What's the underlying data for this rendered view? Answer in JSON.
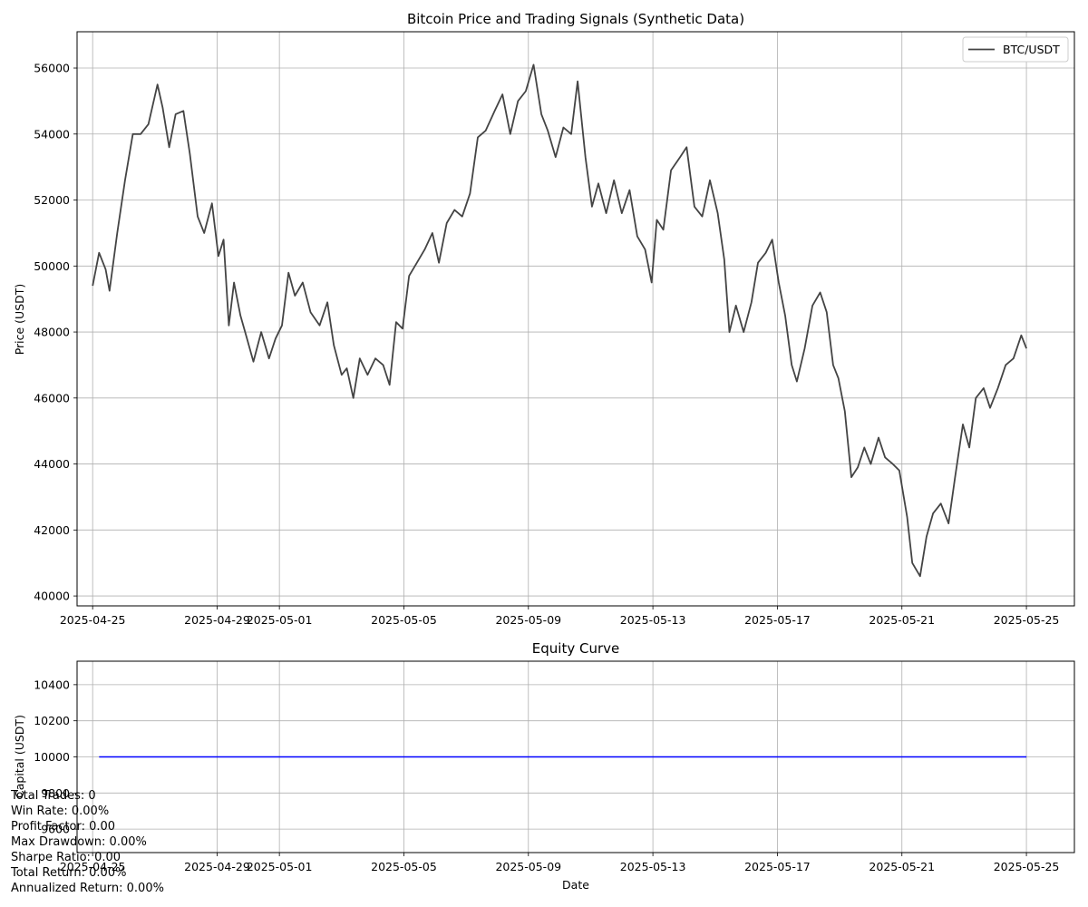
{
  "chart_data": [
    {
      "type": "line",
      "title": "Bitcoin Price and Trading Signals (Synthetic Data)",
      "xlabel": "",
      "ylabel": "Price (USDT)",
      "xlim": [
        "2025-04-24T12:00",
        "2025-05-26T13:00"
      ],
      "ylim": [
        39700,
        57100
      ],
      "xticks": [
        "2025-04-25",
        "2025-04-29",
        "2025-05-01",
        "2025-05-05",
        "2025-05-09",
        "2025-05-13",
        "2025-05-17",
        "2025-05-21",
        "2025-05-25"
      ],
      "yticks": [
        40000,
        42000,
        44000,
        46000,
        48000,
        50000,
        52000,
        54000,
        56000
      ],
      "grid": true,
      "legend": "top-right",
      "series": [
        {
          "name": "BTC/USDT",
          "color": "#444444",
          "points": [
            [
              "2025-04-25T00:00",
              49400
            ],
            [
              "2025-04-25T05:00",
              50400
            ],
            [
              "2025-04-25T10:00",
              49900
            ],
            [
              "2025-04-25T13:00",
              49250
            ],
            [
              "2025-04-25T19:00",
              51000
            ],
            [
              "2025-04-26T01:00",
              52600
            ],
            [
              "2025-04-26T07:00",
              54000
            ],
            [
              "2025-04-26T13:00",
              54000
            ],
            [
              "2025-04-26T19:00",
              54300
            ],
            [
              "2025-04-27T02:00",
              55500
            ],
            [
              "2025-04-27T06:00",
              54800
            ],
            [
              "2025-04-27T11:00",
              53600
            ],
            [
              "2025-04-27T16:00",
              54600
            ],
            [
              "2025-04-27T22:00",
              54700
            ],
            [
              "2025-04-28T03:00",
              53400
            ],
            [
              "2025-04-28T09:00",
              51500
            ],
            [
              "2025-04-28T14:00",
              51000
            ],
            [
              "2025-04-28T20:00",
              51900
            ],
            [
              "2025-04-29T01:00",
              50300
            ],
            [
              "2025-04-29T05:00",
              50800
            ],
            [
              "2025-04-29T09:00",
              48200
            ],
            [
              "2025-04-29T13:00",
              49500
            ],
            [
              "2025-04-29T18:00",
              48500
            ],
            [
              "2025-04-29T23:00",
              47800
            ],
            [
              "2025-04-30T04:00",
              47100
            ],
            [
              "2025-04-30T10:00",
              48000
            ],
            [
              "2025-04-30T16:00",
              47200
            ],
            [
              "2025-04-30T21:00",
              47800
            ],
            [
              "2025-05-01T02:00",
              48200
            ],
            [
              "2025-05-01T07:00",
              49800
            ],
            [
              "2025-05-01T12:00",
              49100
            ],
            [
              "2025-05-01T18:00",
              49500
            ],
            [
              "2025-05-02T00:00",
              48600
            ],
            [
              "2025-05-02T07:00",
              48200
            ],
            [
              "2025-05-02T13:00",
              48900
            ],
            [
              "2025-05-02T18:00",
              47600
            ],
            [
              "2025-05-03T00:00",
              46700
            ],
            [
              "2025-05-03T04:00",
              46900
            ],
            [
              "2025-05-03T09:00",
              46000
            ],
            [
              "2025-05-03T14:00",
              47200
            ],
            [
              "2025-05-03T20:00",
              46700
            ],
            [
              "2025-05-04T02:00",
              47200
            ],
            [
              "2025-05-04T08:00",
              47000
            ],
            [
              "2025-05-04T13:00",
              46400
            ],
            [
              "2025-05-04T18:00",
              48300
            ],
            [
              "2025-05-04T23:00",
              48100
            ],
            [
              "2025-05-05T04:00",
              49700
            ],
            [
              "2025-05-05T10:00",
              50100
            ],
            [
              "2025-05-05T16:00",
              50500
            ],
            [
              "2025-05-05T22:00",
              51000
            ],
            [
              "2025-05-06T03:00",
              50100
            ],
            [
              "2025-05-06T09:00",
              51300
            ],
            [
              "2025-05-06T15:00",
              51700
            ],
            [
              "2025-05-06T21:00",
              51500
            ],
            [
              "2025-05-07T03:00",
              52200
            ],
            [
              "2025-05-07T09:00",
              53900
            ],
            [
              "2025-05-07T15:00",
              54100
            ],
            [
              "2025-05-07T22:00",
              54700
            ],
            [
              "2025-05-08T04:00",
              55200
            ],
            [
              "2025-05-08T10:00",
              54000
            ],
            [
              "2025-05-08T16:00",
              55000
            ],
            [
              "2025-05-08T22:00",
              55300
            ],
            [
              "2025-05-09T04:00",
              56100
            ],
            [
              "2025-05-09T10:00",
              54600
            ],
            [
              "2025-05-09T15:00",
              54100
            ],
            [
              "2025-05-09T21:00",
              53300
            ],
            [
              "2025-05-10T03:00",
              54200
            ],
            [
              "2025-05-10T09:00",
              54000
            ],
            [
              "2025-05-10T14:00",
              55600
            ],
            [
              "2025-05-10T20:00",
              53300
            ],
            [
              "2025-05-11T01:00",
              51800
            ],
            [
              "2025-05-11T06:00",
              52500
            ],
            [
              "2025-05-11T12:00",
              51600
            ],
            [
              "2025-05-11T18:00",
              52600
            ],
            [
              "2025-05-12T00:00",
              51600
            ],
            [
              "2025-05-12T06:00",
              52300
            ],
            [
              "2025-05-12T12:00",
              50900
            ],
            [
              "2025-05-12T18:00",
              50500
            ],
            [
              "2025-05-12T23:00",
              49500
            ],
            [
              "2025-05-13T03:00",
              51400
            ],
            [
              "2025-05-13T08:00",
              51100
            ],
            [
              "2025-05-13T14:00",
              52900
            ],
            [
              "2025-05-13T21:00",
              53300
            ],
            [
              "2025-05-14T02:00",
              53600
            ],
            [
              "2025-05-14T08:00",
              51800
            ],
            [
              "2025-05-14T14:00",
              51500
            ],
            [
              "2025-05-14T20:00",
              52600
            ],
            [
              "2025-05-15T02:00",
              51600
            ],
            [
              "2025-05-15T07:00",
              50200
            ],
            [
              "2025-05-15T11:00",
              48000
            ],
            [
              "2025-05-15T16:00",
              48800
            ],
            [
              "2025-05-15T22:00",
              48000
            ],
            [
              "2025-05-16T04:00",
              48900
            ],
            [
              "2025-05-16T09:00",
              50100
            ],
            [
              "2025-05-16T15:00",
              50400
            ],
            [
              "2025-05-16T20:00",
              50800
            ],
            [
              "2025-05-17T01:00",
              49500
            ],
            [
              "2025-05-17T06:00",
              48500
            ],
            [
              "2025-05-17T11:00",
              47000
            ],
            [
              "2025-05-17T15:00",
              46500
            ],
            [
              "2025-05-17T21:00",
              47500
            ],
            [
              "2025-05-18T03:00",
              48800
            ],
            [
              "2025-05-18T09:00",
              49200
            ],
            [
              "2025-05-18T14:00",
              48600
            ],
            [
              "2025-05-18T19:00",
              47000
            ],
            [
              "2025-05-18T23:00",
              46600
            ],
            [
              "2025-05-19T04:00",
              45600
            ],
            [
              "2025-05-19T09:00",
              43600
            ],
            [
              "2025-05-19T14:00",
              43900
            ],
            [
              "2025-05-19T19:00",
              44500
            ],
            [
              "2025-05-20T00:00",
              44000
            ],
            [
              "2025-05-20T06:00",
              44800
            ],
            [
              "2025-05-20T11:00",
              44200
            ],
            [
              "2025-05-20T17:00",
              44000
            ],
            [
              "2025-05-20T22:00",
              43800
            ],
            [
              "2025-05-21T04:00",
              42400
            ],
            [
              "2025-05-21T08:00",
              41000
            ],
            [
              "2025-05-21T14:00",
              40600
            ],
            [
              "2025-05-21T19:00",
              41800
            ],
            [
              "2025-05-22T00:00",
              42500
            ],
            [
              "2025-05-22T06:00",
              42800
            ],
            [
              "2025-05-22T12:00",
              42200
            ],
            [
              "2025-05-22T17:00",
              43600
            ],
            [
              "2025-05-22T23:00",
              45200
            ],
            [
              "2025-05-23T04:00",
              44500
            ],
            [
              "2025-05-23T09:00",
              46000
            ],
            [
              "2025-05-23T15:00",
              46300
            ],
            [
              "2025-05-23T20:00",
              45700
            ],
            [
              "2025-05-24T02:00",
              46300
            ],
            [
              "2025-05-24T08:00",
              47000
            ],
            [
              "2025-05-24T14:00",
              47200
            ],
            [
              "2025-05-24T20:00",
              47900
            ],
            [
              "2025-05-25T00:00",
              47500
            ]
          ]
        }
      ]
    },
    {
      "type": "line",
      "title": "Equity Curve",
      "xlabel": "Date",
      "ylabel": "Capital (USDT)",
      "xlim": [
        "2025-04-24T12:00",
        "2025-05-26T13:00"
      ],
      "ylim": [
        9470,
        10530
      ],
      "xticks": [
        "2025-04-25",
        "2025-04-29",
        "2025-05-01",
        "2025-05-05",
        "2025-05-09",
        "2025-05-13",
        "2025-05-17",
        "2025-05-21",
        "2025-05-25"
      ],
      "yticks": [
        9600,
        9800,
        10000,
        10200,
        10400
      ],
      "grid": true,
      "series": [
        {
          "color": "#0000ff",
          "points": [
            [
              "2025-04-25T05:00",
              10000
            ],
            [
              "2025-05-25T00:00",
              10000
            ]
          ]
        }
      ]
    }
  ],
  "stats": [
    "Total Trades: 0",
    "Win Rate: 0.00%",
    "Profit Factor: 0.00",
    "Max Drawdown: 0.00%",
    "Sharpe Ratio: 0.00",
    "Total Return: 0.00%",
    "Annualized Return: 0.00%"
  ]
}
